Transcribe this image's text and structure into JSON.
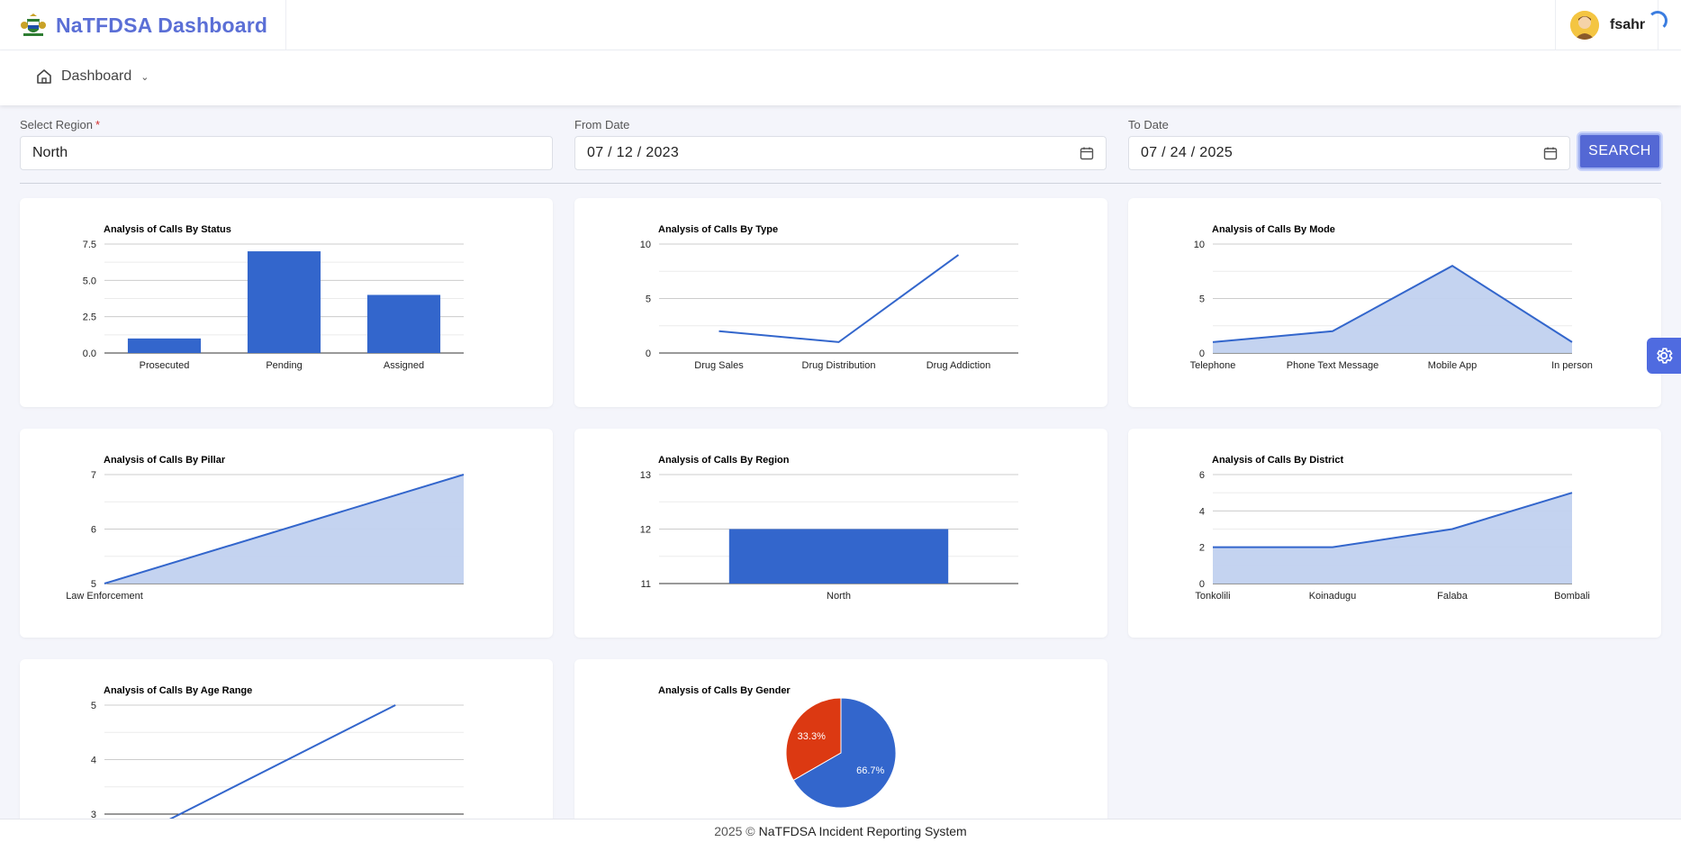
{
  "header": {
    "app_title": "NaTFDSA Dashboard",
    "user_name": "fsahr"
  },
  "nav": {
    "dashboard_label": "Dashboard"
  },
  "filters": {
    "region_label": "Select Region",
    "region_required_mark": "*",
    "region_value": "North",
    "from_label": "From Date",
    "from_value": "07 / 12 / 2023",
    "to_label": "To Date",
    "to_value": "07 / 24 / 2025",
    "search_label": "SEARCH"
  },
  "colors": {
    "series": "#3366cc",
    "area_fill": "#c1d1ef",
    "pie_second": "#dc3912",
    "accent": "#5468d4"
  },
  "chart_data": [
    {
      "id": "status",
      "type": "bar",
      "title": "Analysis of Calls By Status",
      "categories": [
        "Prosecuted",
        "Pending",
        "Assigned"
      ],
      "values": [
        1,
        7,
        4
      ],
      "ylim": [
        0,
        7.5
      ],
      "yticks": [
        0,
        2.5,
        5,
        7.5
      ],
      "ytick_labels": [
        "0.0",
        "2.5",
        "5.0",
        "7.5"
      ],
      "grid": true
    },
    {
      "id": "type",
      "type": "line",
      "title": "Analysis of Calls By Type",
      "categories": [
        "Drug Sales",
        "Drug Distribution",
        "Drug Addiction"
      ],
      "values": [
        2,
        1,
        9
      ],
      "ylim": [
        0,
        10
      ],
      "yticks": [
        0,
        5,
        10
      ],
      "ytick_labels": [
        "0",
        "5",
        "10"
      ],
      "grid": true
    },
    {
      "id": "mode",
      "type": "area",
      "title": "Analysis of Calls By Mode",
      "categories": [
        "Telephone",
        "Phone Text Message",
        "Mobile App",
        "In person"
      ],
      "values": [
        1,
        2,
        8,
        1
      ],
      "ylim": [
        0,
        10
      ],
      "yticks": [
        0,
        5,
        10
      ],
      "ytick_labels": [
        "0",
        "5",
        "10"
      ],
      "grid": true
    },
    {
      "id": "pillar",
      "type": "area",
      "title": "Analysis of Calls By Pillar",
      "categories": [
        "Law Enforcement",
        ""
      ],
      "values": [
        5,
        7
      ],
      "ylim": [
        5,
        7
      ],
      "yticks": [
        5,
        6,
        7
      ],
      "ytick_labels": [
        "5",
        "6",
        "7"
      ],
      "grid": true
    },
    {
      "id": "region",
      "type": "bar",
      "title": "Analysis of Calls By Region",
      "categories": [
        "North"
      ],
      "values": [
        12
      ],
      "ylim": [
        11,
        13
      ],
      "yticks": [
        11,
        12,
        13
      ],
      "ytick_labels": [
        "11",
        "12",
        "13"
      ],
      "grid": true
    },
    {
      "id": "district",
      "type": "area",
      "title": "Analysis of Calls By District",
      "categories": [
        "Tonkolili",
        "Koinadugu",
        "Falaba",
        "Bombali"
      ],
      "values": [
        2,
        2,
        3,
        5
      ],
      "ylim": [
        0,
        6
      ],
      "yticks": [
        0,
        2,
        4,
        6
      ],
      "ytick_labels": [
        "0",
        "2",
        "4",
        "6"
      ],
      "grid": true
    },
    {
      "id": "age",
      "type": "line",
      "title": "Analysis of Calls By Age Range",
      "categories": [
        "",
        "",
        ""
      ],
      "values": [
        2.8,
        4,
        5
      ],
      "ylim": [
        3,
        5
      ],
      "yticks": [
        3,
        4,
        5
      ],
      "ytick_labels": [
        "3",
        "4",
        "5"
      ],
      "grid": true
    },
    {
      "id": "gender",
      "type": "pie",
      "title": "Analysis of Calls By Gender",
      "values": [
        66.7,
        33.3
      ],
      "labels": [
        "66.7%",
        "33.3%"
      ]
    }
  ],
  "footer": {
    "year_text": "2025 ©",
    "system_name": "NaTFDSA Incident Reporting System"
  }
}
